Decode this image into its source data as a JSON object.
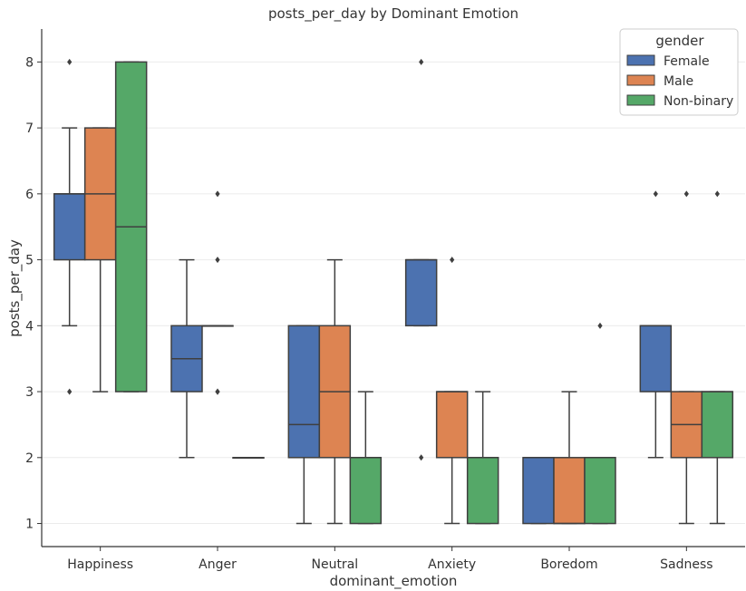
{
  "chart_data": {
    "type": "box",
    "title": "posts_per_day by Dominant Emotion",
    "xlabel": "dominant_emotion",
    "ylabel": "posts_per_day",
    "ylim": [
      0.65,
      8.5
    ],
    "yticks": [
      1,
      2,
      3,
      4,
      5,
      6,
      7,
      8
    ],
    "grid": true,
    "categories": [
      "Happiness",
      "Anger",
      "Neutral",
      "Anxiety",
      "Boredom",
      "Sadness"
    ],
    "legend": {
      "title": "gender",
      "position": "top-right"
    },
    "series": [
      {
        "name": "Female",
        "color": "#4c72b0",
        "boxes": [
          {
            "whisker_low": 4,
            "q1": 5,
            "median": 6,
            "q3": 6,
            "whisker_high": 7,
            "outliers": [
              8,
              3
            ]
          },
          {
            "whisker_low": 2,
            "q1": 3,
            "median": 3.5,
            "q3": 4,
            "whisker_high": 5,
            "outliers": []
          },
          {
            "whisker_low": 1,
            "q1": 2,
            "median": 2.5,
            "q3": 4,
            "whisker_high": 4,
            "outliers": []
          },
          {
            "whisker_low": 4,
            "q1": 4,
            "median": 5,
            "q3": 5,
            "whisker_high": 5,
            "outliers": [
              8,
              2
            ]
          },
          {
            "whisker_low": 1,
            "q1": 1,
            "median": 2,
            "q3": 2,
            "whisker_high": 2,
            "outliers": []
          },
          {
            "whisker_low": 2,
            "q1": 3,
            "median": 4,
            "q3": 4,
            "whisker_high": 4,
            "outliers": [
              6
            ]
          }
        ]
      },
      {
        "name": "Male",
        "color": "#dd8452",
        "boxes": [
          {
            "whisker_low": 3,
            "q1": 5,
            "median": 6,
            "q3": 7,
            "whisker_high": 7,
            "outliers": []
          },
          {
            "whisker_low": 4,
            "q1": 4,
            "median": 4,
            "q3": 4,
            "whisker_high": 4,
            "outliers": [
              6,
              5,
              3,
              3
            ]
          },
          {
            "whisker_low": 1,
            "q1": 2,
            "median": 3,
            "q3": 4,
            "whisker_high": 5,
            "outliers": []
          },
          {
            "whisker_low": 1,
            "q1": 2,
            "median": 3,
            "q3": 3,
            "whisker_high": 3,
            "outliers": [
              5
            ]
          },
          {
            "whisker_low": 1,
            "q1": 1,
            "median": 1,
            "q3": 2,
            "whisker_high": 3,
            "outliers": []
          },
          {
            "whisker_low": 1,
            "q1": 2,
            "median": 2.5,
            "q3": 3,
            "whisker_high": 3,
            "outliers": [
              6
            ]
          }
        ]
      },
      {
        "name": "Non-binary",
        "color": "#55a868",
        "boxes": [
          {
            "whisker_low": 3,
            "q1": 3,
            "median": 5.5,
            "q3": 8,
            "whisker_high": 8,
            "outliers": []
          },
          {
            "whisker_low": 2,
            "q1": 2,
            "median": 2,
            "q3": 2,
            "whisker_high": 2,
            "outliers": []
          },
          {
            "whisker_low": 1,
            "q1": 1,
            "median": 2,
            "q3": 2,
            "whisker_high": 3,
            "outliers": []
          },
          {
            "whisker_low": 1,
            "q1": 1,
            "median": 2,
            "q3": 2,
            "whisker_high": 3,
            "outliers": []
          },
          {
            "whisker_low": 1,
            "q1": 1,
            "median": 2,
            "q3": 2,
            "whisker_high": 2,
            "outliers": [
              4
            ]
          },
          {
            "whisker_low": 1,
            "q1": 2,
            "median": 3,
            "q3": 3,
            "whisker_high": 3,
            "outliers": [
              6
            ]
          }
        ]
      }
    ]
  }
}
